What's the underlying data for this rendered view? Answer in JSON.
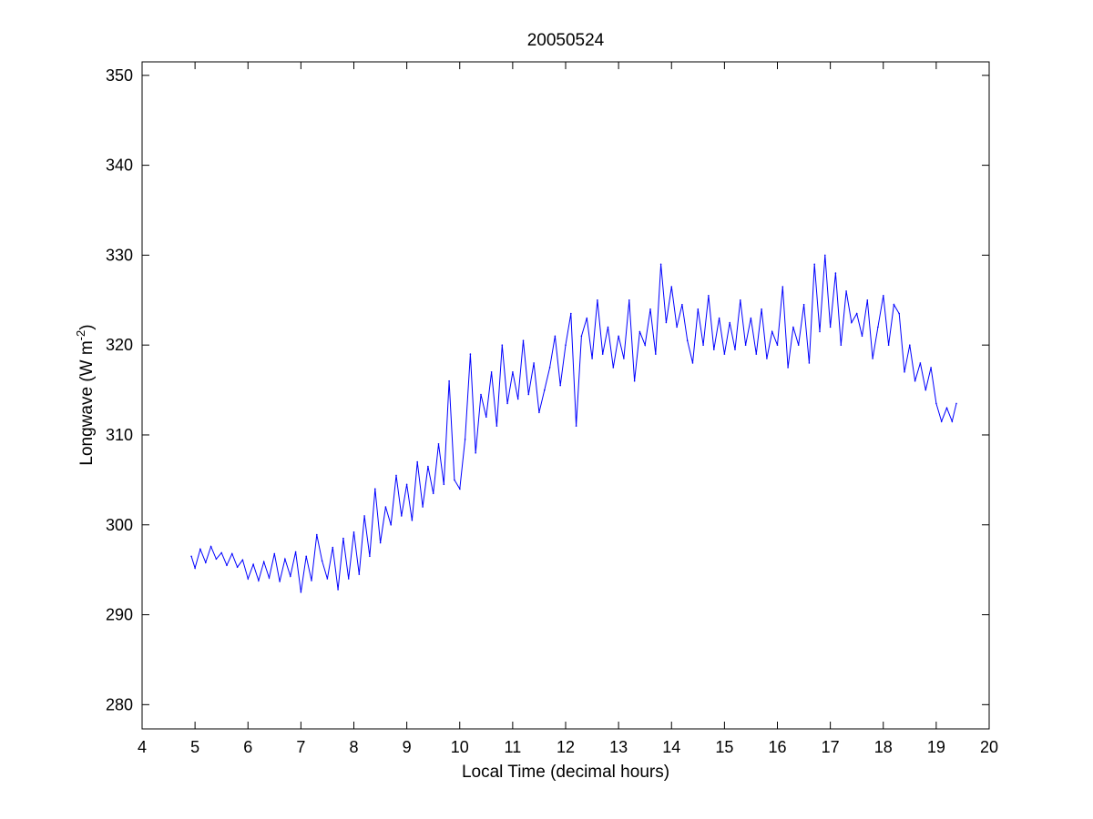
{
  "chart_data": {
    "type": "line",
    "title": "20050524",
    "xlabel": "Local Time (decimal hours)",
    "ylabel_main": "Longwave (W m",
    "ylabel_sup": "-2",
    "ylabel_end": ")",
    "xlim": [
      4,
      20
    ],
    "ylim": [
      277.3,
      351.5
    ],
    "xticks": [
      4,
      5,
      6,
      7,
      8,
      9,
      10,
      11,
      12,
      13,
      14,
      15,
      16,
      17,
      18,
      19,
      20
    ],
    "yticks": [
      280,
      290,
      300,
      310,
      320,
      330,
      340,
      350
    ],
    "grid": false,
    "legend": "none",
    "colors": {
      "series": "#0000ff",
      "axes": "#000000",
      "background": "#ffffff"
    },
    "series": [
      {
        "x": [
          4.93,
          5.0,
          5.1,
          5.2,
          5.3,
          5.4,
          5.5,
          5.6,
          5.7,
          5.8,
          5.9,
          6.0,
          6.1,
          6.2,
          6.3,
          6.4,
          6.5,
          6.6,
          6.7,
          6.8,
          6.9,
          7.0,
          7.1,
          7.2,
          7.3,
          7.4,
          7.5,
          7.6,
          7.7,
          7.8,
          7.9,
          8.0,
          8.1,
          8.2,
          8.3,
          8.4,
          8.5,
          8.6,
          8.7,
          8.8,
          8.9,
          9.0,
          9.1,
          9.2,
          9.3,
          9.4,
          9.5,
          9.6,
          9.7,
          9.8,
          9.9,
          10.0,
          10.1,
          10.2,
          10.3,
          10.4,
          10.5,
          10.6,
          10.7,
          10.8,
          10.9,
          11.0,
          11.1,
          11.2,
          11.3,
          11.4,
          11.5,
          11.6,
          11.7,
          11.8,
          11.9,
          12.0,
          12.1,
          12.2,
          12.3,
          12.4,
          12.5,
          12.6,
          12.7,
          12.8,
          12.9,
          13.0,
          13.1,
          13.2,
          13.3,
          13.4,
          13.5,
          13.6,
          13.7,
          13.8,
          13.9,
          14.0,
          14.1,
          14.2,
          14.3,
          14.4,
          14.5,
          14.6,
          14.7,
          14.8,
          14.9,
          15.0,
          15.1,
          15.2,
          15.3,
          15.4,
          15.5,
          15.6,
          15.7,
          15.8,
          15.9,
          16.0,
          16.1,
          16.2,
          16.3,
          16.4,
          16.5,
          16.6,
          16.7,
          16.8,
          16.9,
          17.0,
          17.1,
          17.2,
          17.3,
          17.4,
          17.5,
          17.6,
          17.7,
          17.8,
          17.9,
          18.0,
          18.1,
          18.2,
          18.3,
          18.4,
          18.5,
          18.6,
          18.7,
          18.8,
          18.9,
          19.0,
          19.1,
          19.2,
          19.3,
          19.38
        ],
        "y": [
          296.5,
          295.2,
          297.3,
          295.8,
          297.6,
          296.2,
          296.9,
          295.5,
          296.8,
          295.3,
          296.1,
          294.0,
          295.6,
          293.8,
          295.9,
          294.1,
          296.8,
          293.7,
          296.2,
          294.3,
          297.0,
          292.5,
          296.5,
          293.8,
          298.9,
          296.0,
          294.0,
          297.5,
          292.8,
          298.5,
          294.0,
          299.2,
          294.5,
          301.0,
          296.5,
          304.0,
          298.0,
          302.0,
          300.0,
          305.5,
          301.0,
          304.5,
          300.5,
          307.0,
          302.0,
          306.5,
          303.5,
          309.0,
          304.5,
          316.0,
          305.0,
          304.0,
          309.5,
          319.0,
          308.0,
          314.5,
          312.0,
          317.0,
          311.0,
          320.0,
          313.5,
          317.0,
          314.0,
          320.5,
          314.5,
          318.0,
          312.5,
          315.0,
          317.5,
          321.0,
          315.5,
          320.0,
          323.5,
          311.0,
          321.0,
          323.0,
          318.5,
          325.0,
          319.0,
          322.0,
          317.5,
          321.0,
          318.5,
          325.0,
          316.0,
          321.5,
          320.0,
          324.0,
          319.0,
          329.0,
          322.5,
          326.5,
          322.0,
          324.5,
          320.5,
          318.0,
          324.0,
          320.0,
          325.5,
          319.5,
          323.0,
          319.0,
          322.5,
          319.5,
          325.0,
          320.0,
          323.0,
          319.0,
          324.0,
          318.5,
          321.5,
          320.0,
          326.5,
          317.5,
          322.0,
          320.0,
          324.5,
          318.0,
          329.0,
          321.5,
          330.0,
          322.0,
          328.0,
          320.0,
          326.0,
          322.5,
          323.5,
          321.0,
          325.0,
          318.5,
          322.0,
          325.5,
          320.0,
          324.5,
          323.5,
          317.0,
          320.0,
          316.0,
          318.0,
          315.0,
          317.5,
          313.5,
          311.5,
          313.0,
          311.5,
          313.5
        ]
      }
    ]
  }
}
